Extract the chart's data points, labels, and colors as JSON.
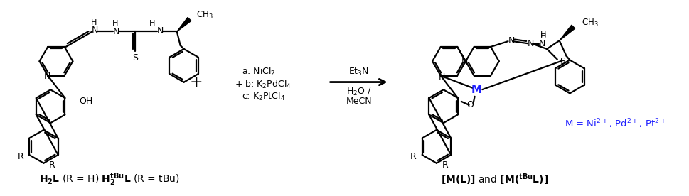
{
  "bg_color": "#ffffff",
  "fig_width": 9.7,
  "fig_height": 2.76,
  "dpi": 100,
  "conditions_a": "a: NiCl$_2$",
  "conditions_b": "+ b: K$_2$PdCl$_4$",
  "conditions_c": "c: K$_2$PtCl$_4$",
  "arrow_label_top": "Et$_3$N",
  "arrow_label_bottom": "H$_2$O /\nMeCN",
  "metal_label": "M = Ni$^{2+}$, Pd$^{2+}$, Pt$^{2+}$",
  "metal_color": "#2020ff",
  "text_color": "#000000"
}
